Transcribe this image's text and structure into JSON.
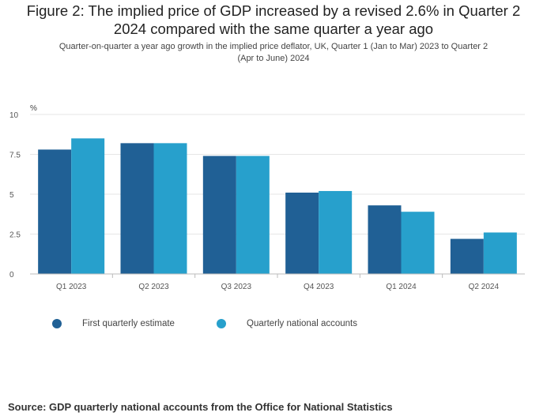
{
  "title_line1": "Figure 2: The implied price of GDP increased by a revised 2.6% in Quarter 2",
  "title_line2": "2024 compared with the same quarter a year ago",
  "subtitle_line1": "Quarter-on-quarter a year ago growth in the implied price deflator, UK, Quarter 1 (Jan to Mar) 2023 to Quarter 2",
  "subtitle_line2": "(Apr to June) 2024",
  "source": "Source: GDP quarterly national accounts from the Office for National Statistics",
  "chart_data": {
    "type": "bar",
    "title": "Figure 2: The implied price of GDP increased by a revised 2.6% in Quarter 2 2024 compared with the same quarter a year ago",
    "subtitle": "Quarter-on-quarter a year ago growth in the implied price deflator, UK, Quarter 1 (Jan to Mar) 2023 to Quarter 2 (Apr to June) 2024",
    "ylabel": "%",
    "xlabel": "",
    "ylim": [
      0,
      10
    ],
    "yticks": [
      "0",
      "2.5",
      "5",
      "7.5",
      "10"
    ],
    "ytick_values": [
      0,
      2.5,
      5,
      7.5,
      10
    ],
    "grid": true,
    "legend_position": "bottom-left",
    "categories": [
      "Q1 2023",
      "Q2 2023",
      "Q3 2023",
      "Q4 2023",
      "Q1 2024",
      "Q2 2024"
    ],
    "series": [
      {
        "name": "First quarterly estimate",
        "color": "#206095",
        "values": [
          7.8,
          8.2,
          7.4,
          5.1,
          4.3,
          2.2
        ]
      },
      {
        "name": "Quarterly national accounts",
        "color": "#27a0cc",
        "values": [
          8.5,
          8.2,
          7.4,
          5.2,
          3.9,
          2.6
        ]
      }
    ]
  }
}
